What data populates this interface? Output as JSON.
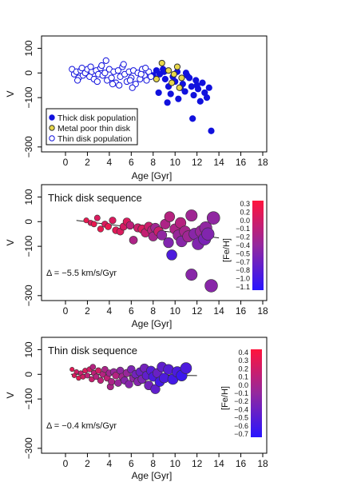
{
  "chart_data": [
    {
      "type": "scatter",
      "panel": "top",
      "title": "",
      "xlabel": "Age [Gyr]",
      "ylabel": "V",
      "xlim": [
        0,
        18
      ],
      "ylim": [
        -320,
        150
      ],
      "xticks": [
        0,
        2,
        4,
        6,
        8,
        10,
        12,
        14,
        16,
        18
      ],
      "yticks": [
        100,
        0,
        -100,
        -300
      ],
      "legend": {
        "placement": "bottom-left",
        "entries": [
          {
            "label": "Thick disk population",
            "marker": "filled",
            "color": "#1111dd"
          },
          {
            "label": "Metal poor thin disk",
            "marker": "filled",
            "color": "#e8d84a"
          },
          {
            "label": "Thin disk population",
            "marker": "open",
            "color": "#1111dd"
          }
        ]
      },
      "series": [
        {
          "name": "Thick disk population",
          "color": "#1111dd",
          "points": [
            [
              8.0,
              -10
            ],
            [
              8.3,
              10
            ],
            [
              8.6,
              -5
            ],
            [
              8.9,
              15
            ],
            [
              9.1,
              -25
            ],
            [
              9.4,
              -55
            ],
            [
              9.6,
              -85
            ],
            [
              9.8,
              -15
            ],
            [
              10.0,
              -35
            ],
            [
              10.2,
              5
            ],
            [
              10.5,
              -60
            ],
            [
              10.7,
              -45
            ],
            [
              10.9,
              -75
            ],
            [
              11.1,
              -10
            ],
            [
              11.3,
              -20
            ],
            [
              11.5,
              -55
            ],
            [
              11.7,
              -90
            ],
            [
              11.9,
              -30
            ],
            [
              12.1,
              -65
            ],
            [
              12.3,
              -115
            ],
            [
              12.5,
              -40
            ],
            [
              12.7,
              -80
            ],
            [
              12.9,
              -100
            ],
            [
              13.1,
              -60
            ],
            [
              13.3,
              -235
            ],
            [
              11.6,
              -185
            ],
            [
              8.5,
              -80
            ],
            [
              9.3,
              -120
            ],
            [
              10.3,
              -105
            ],
            [
              11.0,
              0
            ],
            [
              12.0,
              -50
            ],
            [
              9.0,
              5
            ]
          ]
        },
        {
          "name": "Metal poor thin disk",
          "color": "#e8d84a",
          "points": [
            [
              8.8,
              40
            ],
            [
              9.4,
              10
            ],
            [
              9.9,
              -5
            ],
            [
              10.2,
              25
            ],
            [
              8.3,
              -25
            ],
            [
              9.7,
              -40
            ],
            [
              10.6,
              -20
            ],
            [
              10.4,
              -60
            ]
          ]
        },
        {
          "name": "Thin disk population",
          "color": "#1111dd",
          "points": [
            [
              0.6,
              15
            ],
            [
              0.8,
              -5
            ],
            [
              1.0,
              5
            ],
            [
              1.2,
              -20
            ],
            [
              1.4,
              10
            ],
            [
              1.6,
              -10
            ],
            [
              1.8,
              0
            ],
            [
              2.0,
              15
            ],
            [
              2.2,
              -15
            ],
            [
              2.4,
              5
            ],
            [
              2.6,
              -25
            ],
            [
              2.8,
              10
            ],
            [
              3.0,
              -5
            ],
            [
              3.2,
              20
            ],
            [
              3.4,
              -10
            ],
            [
              3.6,
              0
            ],
            [
              3.8,
              -30
            ],
            [
              4.0,
              15
            ],
            [
              4.2,
              -20
            ],
            [
              4.4,
              5
            ],
            [
              4.6,
              -40
            ],
            [
              4.8,
              10
            ],
            [
              5.0,
              -15
            ],
            [
              5.2,
              25
            ],
            [
              5.4,
              -5
            ],
            [
              5.6,
              -35
            ],
            [
              5.8,
              5
            ],
            [
              6.0,
              -20
            ],
            [
              6.2,
              10
            ],
            [
              6.4,
              -45
            ],
            [
              6.6,
              0
            ],
            [
              6.8,
              -25
            ],
            [
              7.0,
              15
            ],
            [
              7.2,
              -10
            ],
            [
              7.4,
              -30
            ],
            [
              7.6,
              5
            ],
            [
              7.8,
              -15
            ],
            [
              3.7,
              50
            ],
            [
              1.1,
              -30
            ],
            [
              2.9,
              -35
            ],
            [
              4.9,
              -50
            ],
            [
              6.1,
              -60
            ],
            [
              3.3,
              30
            ],
            [
              5.3,
              35
            ],
            [
              1.5,
              20
            ],
            [
              2.3,
              25
            ],
            [
              4.3,
              -45
            ],
            [
              6.9,
              -5
            ],
            [
              7.3,
              20
            ],
            [
              5.9,
              -30
            ]
          ]
        }
      ]
    },
    {
      "type": "scatter",
      "panel": "middle",
      "title": "Thick disk sequence",
      "xlabel": "Age [Gyr]",
      "ylabel": "V",
      "xlim": [
        0,
        18
      ],
      "ylim": [
        -320,
        150
      ],
      "xticks": [
        0,
        2,
        4,
        6,
        8,
        10,
        12,
        14,
        16,
        18
      ],
      "yticks": [
        100,
        0,
        -100,
        -300
      ],
      "annotation": "Δ = −5.5 km/s/Gyr",
      "colorbar": {
        "label": "[Fe/H]",
        "ticks": [
          "0.3",
          "0.2",
          "0.0",
          "−0.1",
          "−0.2",
          "−0.4",
          "−0.5",
          "−0.7",
          "−0.8",
          "−1.0",
          "−1.1"
        ],
        "min": -1.1,
        "max": 0.35
      },
      "fit": {
        "x": [
          1.0,
          14.0
        ],
        "y": [
          5,
          -66
        ]
      },
      "points": [
        [
          1.9,
          5,
          0.2
        ],
        [
          2.3,
          -5,
          0.1
        ],
        [
          2.6,
          -10,
          0.2
        ],
        [
          2.9,
          15,
          0.1
        ],
        [
          3.2,
          -30,
          0.2
        ],
        [
          3.6,
          -10,
          0.1
        ],
        [
          3.9,
          -20,
          0.2
        ],
        [
          4.3,
          5,
          0.1
        ],
        [
          4.6,
          -35,
          0.15
        ],
        [
          5.0,
          -40,
          0.1
        ],
        [
          5.3,
          -20,
          0.05
        ],
        [
          5.6,
          0,
          0.1
        ],
        [
          5.9,
          -15,
          -0.1
        ],
        [
          6.2,
          -75,
          -0.2
        ],
        [
          6.6,
          -25,
          0.0
        ],
        [
          7.0,
          -30,
          0.1
        ],
        [
          7.3,
          -45,
          -0.05
        ],
        [
          7.6,
          -20,
          0.0
        ],
        [
          7.9,
          -35,
          -0.1
        ],
        [
          8.2,
          -25,
          -0.3
        ],
        [
          8.5,
          -40,
          0.0
        ],
        [
          8.8,
          -55,
          -0.4
        ],
        [
          9.1,
          -10,
          -0.2
        ],
        [
          9.4,
          -85,
          -0.5
        ],
        [
          9.7,
          -135,
          -0.85
        ],
        [
          10.0,
          -30,
          -0.2
        ],
        [
          10.3,
          -55,
          -0.35
        ],
        [
          10.6,
          -80,
          -0.45
        ],
        [
          10.9,
          -40,
          -0.25
        ],
        [
          11.2,
          -60,
          -0.3
        ],
        [
          11.5,
          25,
          -0.3
        ],
        [
          11.5,
          -215,
          -0.45
        ],
        [
          11.8,
          -50,
          -0.45
        ],
        [
          12.1,
          -90,
          -0.5
        ],
        [
          12.4,
          -40,
          -0.35
        ],
        [
          12.7,
          -70,
          -0.55
        ],
        [
          13.0,
          -50,
          -0.5
        ],
        [
          13.3,
          -260,
          -0.45
        ],
        [
          13.5,
          15,
          -0.4
        ],
        [
          9.5,
          20,
          -0.15
        ],
        [
          10.5,
          -5,
          -0.15
        ],
        [
          8.0,
          -60,
          -0.25
        ],
        [
          12.8,
          -25,
          -0.4
        ]
      ]
    },
    {
      "type": "scatter",
      "panel": "bottom",
      "title": "Thin disk sequence",
      "xlabel": "Age [Gyr]",
      "ylabel": "V",
      "xlim": [
        0,
        18
      ],
      "ylim": [
        -320,
        150
      ],
      "xticks": [
        0,
        2,
        4,
        6,
        8,
        10,
        12,
        14,
        16,
        18
      ],
      "yticks": [
        100,
        0,
        -100,
        -300
      ],
      "annotation": "Δ = −0.4 km/s/Gyr",
      "colorbar": {
        "label": "[Fe/H]",
        "ticks": [
          "0.4",
          "0.3",
          "0.2",
          "0.1",
          "0.0",
          "−0.1",
          "−0.2",
          "−0.4",
          "−0.5",
          "−0.6",
          "−0.7"
        ],
        "min": -0.7,
        "max": 0.45
      },
      "fit": {
        "x": [
          0.5,
          12.0
        ],
        "y": [
          0,
          -5
        ]
      },
      "points": [
        [
          0.6,
          20,
          0.3
        ],
        [
          0.8,
          -5,
          0.25
        ],
        [
          1.0,
          10,
          0.2
        ],
        [
          1.2,
          -15,
          0.3
        ],
        [
          1.4,
          5,
          0.15
        ],
        [
          1.6,
          -10,
          0.2
        ],
        [
          1.8,
          15,
          0.25
        ],
        [
          2.0,
          -5,
          0.1
        ],
        [
          2.2,
          20,
          0.2
        ],
        [
          2.4,
          -20,
          0.15
        ],
        [
          2.6,
          5,
          0.1
        ],
        [
          2.8,
          -10,
          0.05
        ],
        [
          3.0,
          15,
          0.2
        ],
        [
          3.2,
          -25,
          0.1
        ],
        [
          3.4,
          0,
          0.05
        ],
        [
          3.6,
          20,
          0.0
        ],
        [
          3.8,
          -15,
          0.1
        ],
        [
          4.0,
          5,
          -0.05
        ],
        [
          4.2,
          -30,
          0.0
        ],
        [
          4.4,
          10,
          -0.1
        ],
        [
          4.6,
          -5,
          0.05
        ],
        [
          4.8,
          -35,
          -0.1
        ],
        [
          5.0,
          15,
          -0.15
        ],
        [
          5.2,
          -10,
          -0.05
        ],
        [
          5.4,
          -25,
          -0.2
        ],
        [
          5.6,
          5,
          -0.1
        ],
        [
          5.8,
          -40,
          -0.2
        ],
        [
          6.0,
          20,
          -0.25
        ],
        [
          6.2,
          -15,
          -0.15
        ],
        [
          6.4,
          0,
          -0.3
        ],
        [
          6.6,
          -30,
          -0.2
        ],
        [
          6.8,
          10,
          -0.35
        ],
        [
          7.0,
          -20,
          -0.25
        ],
        [
          7.2,
          25,
          -0.3
        ],
        [
          7.4,
          -5,
          -0.4
        ],
        [
          7.6,
          -45,
          -0.3
        ],
        [
          7.8,
          15,
          -0.45
        ],
        [
          8.0,
          -10,
          -0.5
        ],
        [
          8.2,
          -60,
          -0.4
        ],
        [
          8.4,
          5,
          -0.35
        ],
        [
          8.6,
          -30,
          -0.55
        ],
        [
          8.8,
          30,
          -0.4
        ],
        [
          9.0,
          -15,
          -0.5
        ],
        [
          9.4,
          20,
          -0.45
        ],
        [
          9.8,
          -20,
          -0.55
        ],
        [
          10.2,
          10,
          -0.5
        ],
        [
          10.6,
          -5,
          -0.6
        ],
        [
          11.0,
          25,
          -0.5
        ],
        [
          4.1,
          -50,
          0.0
        ],
        [
          2.5,
          30,
          0.05
        ]
      ]
    }
  ]
}
